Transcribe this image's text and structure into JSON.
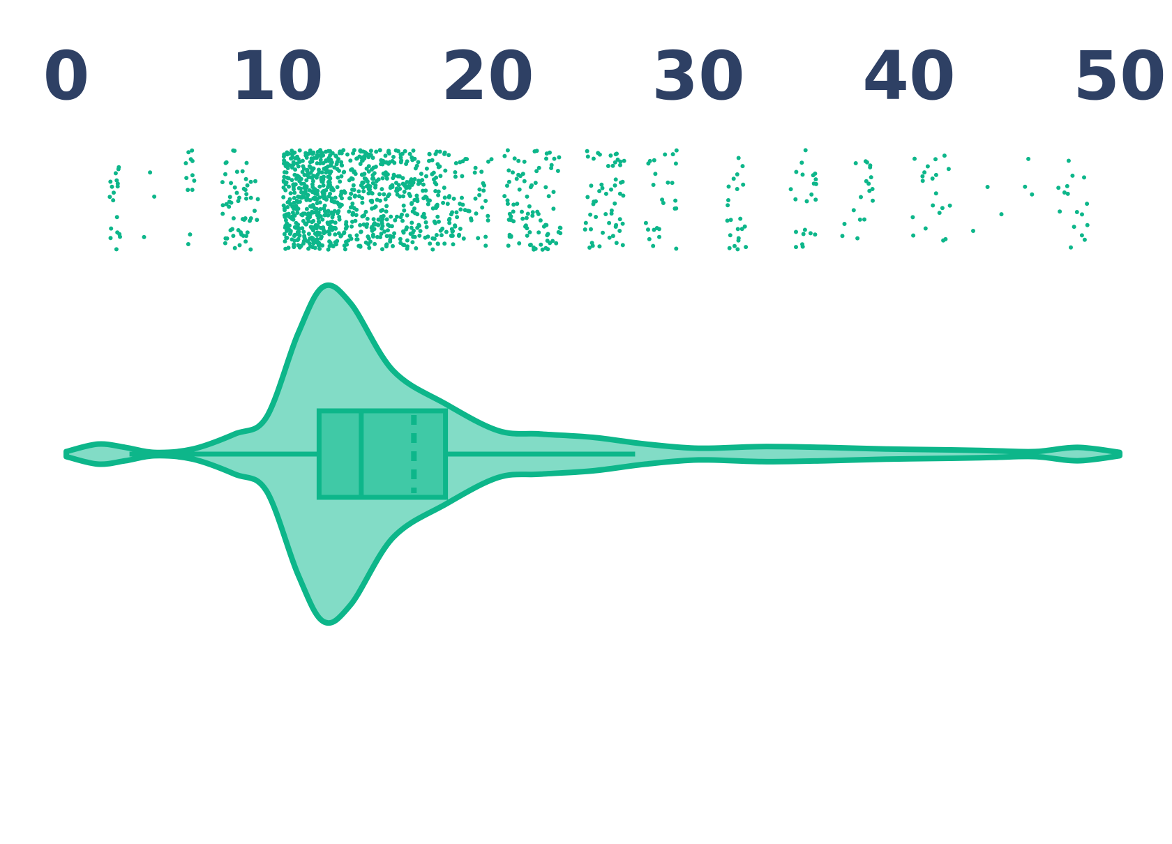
{
  "chart_data": {
    "type": "violin",
    "title": "",
    "xlabel": "",
    "ylabel": "",
    "xlim": [
      0,
      50
    ],
    "x_tick_labels": [
      "0",
      "10",
      "20",
      "30",
      "40",
      "50"
    ],
    "x_ticks": [
      0,
      10,
      20,
      30,
      40,
      50
    ],
    "grid": false,
    "orientation": "horizontal",
    "colors": {
      "accent": "#0db68a",
      "violin_fill": "#82dcc6",
      "box_fill": "#40c9a6",
      "tick_text": "#2e4064"
    },
    "box": {
      "whisker_low": 3,
      "q1": 12,
      "median": 14,
      "mean": 16.5,
      "q3": 18,
      "whisker_high": 27
    },
    "violin_range": [
      0,
      50
    ],
    "density_profile": [
      {
        "x": 0,
        "d": 0.015
      },
      {
        "x": 1.5,
        "d": 0.06
      },
      {
        "x": 2.8,
        "d": 0.04
      },
      {
        "x": 4.2,
        "d": 0.01
      },
      {
        "x": 6,
        "d": 0.03
      },
      {
        "x": 8,
        "d": 0.12
      },
      {
        "x": 9.5,
        "d": 0.22
      },
      {
        "x": 11,
        "d": 0.72
      },
      {
        "x": 12.2,
        "d": 1.0
      },
      {
        "x": 13.5,
        "d": 0.9
      },
      {
        "x": 15.5,
        "d": 0.5
      },
      {
        "x": 18,
        "d": 0.3
      },
      {
        "x": 20.5,
        "d": 0.14
      },
      {
        "x": 22.5,
        "d": 0.12
      },
      {
        "x": 25,
        "d": 0.1
      },
      {
        "x": 27.5,
        "d": 0.06
      },
      {
        "x": 30,
        "d": 0.035
      },
      {
        "x": 33,
        "d": 0.045
      },
      {
        "x": 36,
        "d": 0.04
      },
      {
        "x": 39,
        "d": 0.03
      },
      {
        "x": 42,
        "d": 0.025
      },
      {
        "x": 44,
        "d": 0.02
      },
      {
        "x": 46,
        "d": 0.015
      },
      {
        "x": 48,
        "d": 0.04
      },
      {
        "x": 50,
        "d": 0.01
      }
    ],
    "point_clusters": [
      {
        "x_min": 2.0,
        "x_max": 2.6,
        "count": 18
      },
      {
        "x_min": 3.3,
        "x_max": 4.2,
        "count": 3
      },
      {
        "x_min": 5.5,
        "x_max": 6.2,
        "count": 12
      },
      {
        "x_min": 7.4,
        "x_max": 9.1,
        "count": 55
      },
      {
        "x_min": 10.3,
        "x_max": 12.7,
        "count": 420
      },
      {
        "x_min": 12.7,
        "x_max": 14.7,
        "count": 200
      },
      {
        "x_min": 14.7,
        "x_max": 16.5,
        "count": 150
      },
      {
        "x_min": 16.5,
        "x_max": 18.5,
        "count": 110
      },
      {
        "x_min": 18.5,
        "x_max": 20.2,
        "count": 40
      },
      {
        "x_min": 20.8,
        "x_max": 23.5,
        "count": 90
      },
      {
        "x_min": 24.6,
        "x_max": 26.5,
        "count": 55
      },
      {
        "x_min": 27.5,
        "x_max": 29.0,
        "count": 25
      },
      {
        "x_min": 31.3,
        "x_max": 32.4,
        "count": 22
      },
      {
        "x_min": 34.3,
        "x_max": 35.6,
        "count": 22
      },
      {
        "x_min": 36.8,
        "x_max": 38.3,
        "count": 18
      },
      {
        "x_min": 40.0,
        "x_max": 42.0,
        "count": 20
      },
      {
        "x_min": 43.0,
        "x_max": 44.5,
        "count": 3
      },
      {
        "x_min": 45.0,
        "x_max": 46.0,
        "count": 3
      },
      {
        "x_min": 47.0,
        "x_max": 48.5,
        "count": 16
      }
    ]
  }
}
